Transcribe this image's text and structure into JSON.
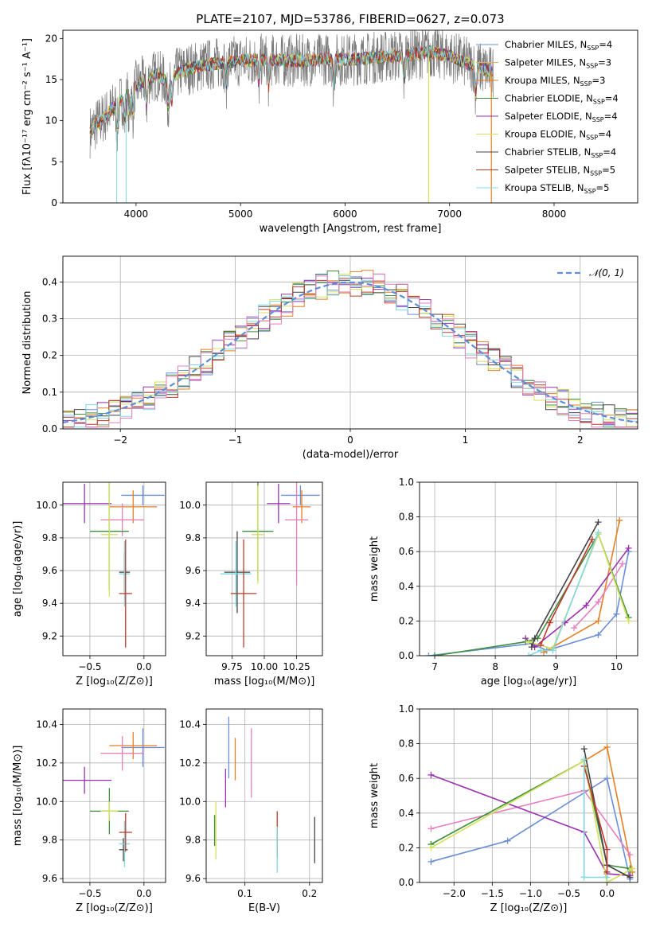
{
  "chart_data": [
    {
      "id": "spectrum",
      "type": "line",
      "title": "PLATE=2107, MJD=53786, FIBERID=0627, z=0.073",
      "xlabel": "wavelength [Angstrom, rest frame]",
      "ylabel": "Flux [fλ10⁻¹⁷ erg cm⁻² s⁻¹ A⁻¹]",
      "xlim": [
        3300,
        8800
      ],
      "ylim": [
        0,
        21
      ],
      "xticks": [
        4000,
        5000,
        6000,
        7000,
        8000
      ],
      "yticks": [
        0,
        5,
        10,
        15,
        20
      ],
      "continuum_x": [
        3550,
        3600,
        3700,
        3800,
        3900,
        4000,
        4100,
        4200,
        4300,
        4400,
        4500,
        4600,
        4700,
        4800,
        5000,
        5200,
        5400,
        5600,
        5800,
        6000,
        6200,
        6400,
        6600,
        6800,
        7000,
        7200,
        7400
      ],
      "continuum_y": [
        8.5,
        9.3,
        10.5,
        11.8,
        13.0,
        14.2,
        15.0,
        15.6,
        14.6,
        15.8,
        16.3,
        16.6,
        16.8,
        17.0,
        17.3,
        17.4,
        17.3,
        17.3,
        17.5,
        17.4,
        17.6,
        17.8,
        18.0,
        18.4,
        17.9,
        16.8,
        15.9
      ],
      "legend": [
        {
          "label": "Chabrier MILES, N_SSP=4",
          "text_main": "Chabrier MILES, N",
          "text_sub": "SSP",
          "text_end": "=4",
          "color": "#6a8fd8"
        },
        {
          "label": "Salpeter MILES, N_SSP=3",
          "text_main": "Salpeter MILES, N",
          "text_sub": "SSP",
          "text_end": "=3",
          "color": "#f0ad4e"
        },
        {
          "label": "Kroupa MILES, N_SSP=3",
          "text_main": "Kroupa MILES, N",
          "text_sub": "SSP",
          "text_end": "=3",
          "color": "#e67e22"
        },
        {
          "label": "Chabrier ELODIE, N_SSP=4",
          "text_main": "Chabrier ELODIE, N",
          "text_sub": "SSP",
          "text_end": "=4",
          "color": "#3f8f3f"
        },
        {
          "label": "Salpeter ELODIE, N_SSP=4",
          "text_main": "Salpeter ELODIE, N",
          "text_sub": "SSP",
          "text_end": "=4",
          "color": "#9b30b0"
        },
        {
          "label": "Kroupa ELODIE, N_SSP=4",
          "text_main": "Kroupa ELODIE, N",
          "text_sub": "SSP",
          "text_end": "=4",
          "color": "#d4e157"
        },
        {
          "label": "Chabrier STELIB, N_SSP=4",
          "text_main": "Chabrier STELIB, N",
          "text_sub": "SSP",
          "text_end": "=4",
          "color": "#444444"
        },
        {
          "label": "Salpeter STELIB, N_SSP=5",
          "text_main": "Salpeter STELIB, N",
          "text_sub": "SSP",
          "text_end": "=5",
          "color": "#c0392b"
        },
        {
          "label": "Kroupa STELIB, N_SSP=5",
          "text_main": "Kroupa STELIB, N",
          "text_sub": "SSP",
          "text_end": "=5",
          "color": "#7fd8e0"
        }
      ]
    },
    {
      "id": "residuals",
      "type": "histogram",
      "xlabel": "(data-model)/error",
      "ylabel": "Normed distribution",
      "xlim": [
        -2.5,
        2.5
      ],
      "ylim": [
        0,
        0.47
      ],
      "xticks": [
        -2,
        -1,
        0,
        1,
        2
      ],
      "yticks": [
        0.0,
        0.1,
        0.2,
        0.3,
        0.4
      ],
      "grid": true,
      "legend_label": "𝒩(0, 1)",
      "legend_color": "#5b8fd9",
      "bin_width": 0.1,
      "histogram_colors": [
        "#6a8fd8",
        "#e67e22",
        "#3f8f3f",
        "#9b30b0",
        "#d4e157",
        "#444444",
        "#c0392b",
        "#7fd8e0",
        "#e87fbf"
      ]
    },
    {
      "id": "age_vs_Z",
      "type": "scatter",
      "xlabel": "Z [log₁₀(Z/Z⊙)]",
      "ylabel": "age  [log₁₀(age/yr)]",
      "xlim": [
        -0.75,
        0.2
      ],
      "ylim": [
        9.08,
        10.14
      ],
      "xticks": [
        -0.5,
        0.0
      ],
      "yticks": [
        9.2,
        9.4,
        9.6,
        9.8,
        10.0
      ],
      "points": [
        {
          "x": -0.01,
          "y": 10.06,
          "xerr": 0.2,
          "yerr": 0.06,
          "color": "#6a8fd8"
        },
        {
          "x": -0.1,
          "y": 9.99,
          "xerr": 0.22,
          "yerr": 0.1,
          "color": "#e67e22"
        },
        {
          "x": -0.2,
          "y": 9.91,
          "xerr": 0.2,
          "yerr": 0.1,
          "color": "#e87fbf"
        },
        {
          "x": -0.55,
          "y": 10.01,
          "xerr": 0.25,
          "yerr": 0.12,
          "color": "#9b30b0"
        },
        {
          "x": -0.32,
          "y": 9.84,
          "xerr": 0.18,
          "yerr": 0.36,
          "color": "#3f8f3f"
        },
        {
          "x": -0.32,
          "y": 9.82,
          "xerr": 0.08,
          "yerr": 0.38,
          "color": "#d4e157"
        },
        {
          "x": -0.18,
          "y": 9.59,
          "xerr": 0.05,
          "yerr": 0.12,
          "color": "#444444"
        },
        {
          "x": -0.18,
          "y": 9.58,
          "xerr": 0.05,
          "yerr": 0.2,
          "color": "#7fd8e0"
        },
        {
          "x": -0.17,
          "y": 9.46,
          "xerr": 0.06,
          "yerr": 0.33,
          "color": "#c0392b"
        }
      ]
    },
    {
      "id": "age_vs_mass",
      "type": "scatter",
      "xlabel": "mass [log₁₀(M/M⊙)]",
      "xlim": [
        9.55,
        10.45
      ],
      "ylim": [
        9.08,
        10.14
      ],
      "xticks": [
        9.75,
        10.0,
        10.25
      ],
      "xticklabels": [
        "9.75",
        "10.00",
        "10.25"
      ],
      "yticks": [
        9.2,
        9.4,
        9.6,
        9.8,
        10.0
      ],
      "points": [
        {
          "x": 10.28,
          "y": 10.06,
          "xerr": 0.15,
          "yerr": 0.06,
          "color": "#6a8fd8"
        },
        {
          "x": 10.29,
          "y": 9.99,
          "xerr": 0.07,
          "yerr": 0.1,
          "color": "#e67e22"
        },
        {
          "x": 10.25,
          "y": 9.91,
          "xerr": 0.09,
          "yerr": 0.4,
          "color": "#e87fbf"
        },
        {
          "x": 10.11,
          "y": 10.01,
          "xerr": 0.09,
          "yerr": 0.12,
          "color": "#9b30b0"
        },
        {
          "x": 9.95,
          "y": 9.84,
          "xerr": 0.12,
          "yerr": 0.3,
          "color": "#3f8f3f"
        },
        {
          "x": 9.95,
          "y": 9.82,
          "xerr": 0.05,
          "yerr": 0.3,
          "color": "#d4e157"
        },
        {
          "x": 9.79,
          "y": 9.59,
          "xerr": 0.1,
          "yerr": 0.25,
          "color": "#444444"
        },
        {
          "x": 9.78,
          "y": 9.58,
          "xerr": 0.12,
          "yerr": 0.2,
          "color": "#7fd8e0"
        },
        {
          "x": 9.84,
          "y": 9.46,
          "xerr": 0.1,
          "yerr": 0.33,
          "color": "#c0392b"
        }
      ]
    },
    {
      "id": "weight_vs_age",
      "type": "line",
      "xlabel": "age  [log₁₀(age/yr)]",
      "ylabel": "mass weight",
      "xlim": [
        6.75,
        10.35
      ],
      "ylim": [
        0,
        1.0
      ],
      "xticks": [
        7,
        8,
        9,
        10
      ],
      "yticks": [
        0.0,
        0.2,
        0.4,
        0.6,
        0.8,
        1.0
      ],
      "series": [
        {
          "color": "#6a8fd8",
          "x": [
            6.9,
            8.6,
            8.85,
            9.7,
            10.0,
            10.2
          ],
          "y": [
            0.0,
            0.07,
            0.03,
            0.12,
            0.24,
            0.6
          ]
        },
        {
          "color": "#e67e22",
          "x": [
            8.8,
            9.7,
            10.05
          ],
          "y": [
            0.02,
            0.2,
            0.78
          ]
        },
        {
          "color": "#e87fbf",
          "x": [
            9.3,
            9.7,
            10.1
          ],
          "y": [
            0.16,
            0.31,
            0.53
          ]
        },
        {
          "color": "#9b30b0",
          "x": [
            8.5,
            8.65,
            9.15,
            9.5,
            10.2
          ],
          "y": [
            0.1,
            0.05,
            0.19,
            0.29,
            0.62
          ]
        },
        {
          "color": "#3f8f3f",
          "x": [
            7.0,
            8.5,
            8.7,
            9.7,
            10.2
          ],
          "y": [
            0.0,
            0.08,
            0.1,
            0.7,
            0.22
          ]
        },
        {
          "color": "#d4e157",
          "x": [
            8.55,
            8.95,
            9.7,
            10.2
          ],
          "y": [
            0.08,
            0.04,
            0.7,
            0.2
          ]
        },
        {
          "color": "#444444",
          "x": [
            8.6,
            8.65,
            9.7
          ],
          "y": [
            0.05,
            0.1,
            0.77
          ]
        },
        {
          "color": "#c0392b",
          "x": [
            8.75,
            8.9,
            9.6
          ],
          "y": [
            0.06,
            0.19,
            0.67
          ]
        },
        {
          "color": "#7fd8e0",
          "x": [
            8.55,
            8.75,
            8.95,
            9.7
          ],
          "y": [
            0.0,
            0.03,
            0.03,
            0.71
          ]
        }
      ]
    },
    {
      "id": "mass_vs_Z",
      "type": "scatter",
      "xlabel": "Z [log₁₀(Z/Z⊙)]",
      "ylabel": "mass [log₁₀(M/M⊙)]",
      "xlim": [
        -0.75,
        0.2
      ],
      "ylim": [
        9.58,
        10.48
      ],
      "xticks": [
        -0.5,
        0.0
      ],
      "yticks": [
        9.6,
        9.8,
        10.0,
        10.2,
        10.4
      ],
      "points": [
        {
          "x": -0.01,
          "y": 10.28,
          "xerr": 0.2,
          "yerr": 0.1,
          "color": "#6a8fd8"
        },
        {
          "x": -0.1,
          "y": 10.29,
          "xerr": 0.22,
          "yerr": 0.07,
          "color": "#e67e22"
        },
        {
          "x": -0.2,
          "y": 10.25,
          "xerr": 0.2,
          "yerr": 0.09,
          "color": "#e87fbf"
        },
        {
          "x": -0.55,
          "y": 10.11,
          "xerr": 0.25,
          "yerr": 0.07,
          "color": "#9b30b0"
        },
        {
          "x": -0.32,
          "y": 9.95,
          "xerr": 0.18,
          "yerr": 0.12,
          "color": "#3f8f3f"
        },
        {
          "x": -0.32,
          "y": 9.95,
          "xerr": 0.08,
          "yerr": 0.05,
          "color": "#d4e157"
        },
        {
          "x": -0.19,
          "y": 9.75,
          "xerr": 0.04,
          "yerr": 0.06,
          "color": "#444444"
        },
        {
          "x": -0.18,
          "y": 9.78,
          "xerr": 0.05,
          "yerr": 0.12,
          "color": "#7fd8e0"
        },
        {
          "x": -0.17,
          "y": 9.84,
          "xerr": 0.06,
          "yerr": 0.1,
          "color": "#c0392b"
        }
      ]
    },
    {
      "id": "mass_vs_ebv",
      "type": "scatter",
      "xlabel": "E(B-V)",
      "xlim": [
        0.04,
        0.22
      ],
      "ylim": [
        9.58,
        10.48
      ],
      "xticks": [
        0.1,
        0.2
      ],
      "yticks": [
        9.6,
        9.8,
        10.0,
        10.2,
        10.4
      ],
      "points": [
        {
          "x": 0.075,
          "y": 10.28,
          "xerr": 0,
          "yerr": 0.16,
          "color": "#6a8fd8"
        },
        {
          "x": 0.085,
          "y": 10.22,
          "xerr": 0,
          "yerr": 0.11,
          "color": "#e67e22"
        },
        {
          "x": 0.11,
          "y": 10.2,
          "xerr": 0,
          "yerr": 0.18,
          "color": "#e87fbf"
        },
        {
          "x": 0.07,
          "y": 10.07,
          "xerr": 0,
          "yerr": 0.1,
          "color": "#9b30b0"
        },
        {
          "x": 0.053,
          "y": 9.85,
          "xerr": 0,
          "yerr": 0.08,
          "color": "#3f8f3f"
        },
        {
          "x": 0.055,
          "y": 9.85,
          "xerr": 0,
          "yerr": 0.15,
          "color": "#d4e157"
        },
        {
          "x": 0.208,
          "y": 9.8,
          "xerr": 0,
          "yerr": 0.12,
          "color": "#444444"
        },
        {
          "x": 0.15,
          "y": 9.83,
          "xerr": 0,
          "yerr": 0.12,
          "color": "#c0392b"
        },
        {
          "x": 0.15,
          "y": 9.75,
          "xerr": 0,
          "yerr": 0.12,
          "color": "#7fd8e0"
        }
      ]
    },
    {
      "id": "weight_vs_Z",
      "type": "line",
      "xlabel": "Z [log₁₀(Z/Z⊙)]",
      "ylabel": "mass weight",
      "xlim": [
        -2.45,
        0.4
      ],
      "ylim": [
        0,
        1.0
      ],
      "xticks": [
        -2.0,
        -1.5,
        -1.0,
        -0.5,
        0.0
      ],
      "yticks": [
        0.0,
        0.2,
        0.4,
        0.6,
        0.8,
        1.0
      ],
      "series": [
        {
          "color": "#6a8fd8",
          "x": [
            -2.3,
            -1.3,
            0.0,
            0.3
          ],
          "y": [
            0.12,
            0.24,
            0.6,
            0.02
          ]
        },
        {
          "color": "#e67e22",
          "x": [
            -0.3,
            0.0,
            0.33
          ],
          "y": [
            0.7,
            0.78,
            0.06
          ]
        },
        {
          "color": "#e87fbf",
          "x": [
            -2.3,
            -0.3,
            0.3
          ],
          "y": [
            0.31,
            0.53,
            0.16
          ]
        },
        {
          "color": "#9b30b0",
          "x": [
            -2.3,
            -0.3,
            0.0,
            0.3
          ],
          "y": [
            0.62,
            0.29,
            0.05,
            0.04
          ]
        },
        {
          "color": "#3f8f3f",
          "x": [
            -2.3,
            -0.3,
            0.0,
            0.3
          ],
          "y": [
            0.22,
            0.7,
            0.1,
            0.08
          ]
        },
        {
          "color": "#d4e157",
          "x": [
            -2.3,
            -0.3,
            0.0,
            0.33
          ],
          "y": [
            0.2,
            0.7,
            0.0,
            0.08
          ]
        },
        {
          "color": "#444444",
          "x": [
            -0.3,
            0.0,
            0.3
          ],
          "y": [
            0.77,
            0.1,
            0.03
          ]
        },
        {
          "color": "#c0392b",
          "x": [
            -0.3,
            0.0,
            0.0
          ],
          "y": [
            0.67,
            0.19,
            0.06
          ]
        },
        {
          "color": "#7fd8e0",
          "x": [
            -0.3,
            -0.3,
            0.0
          ],
          "y": [
            0.71,
            0.03,
            0.03
          ]
        }
      ]
    }
  ]
}
